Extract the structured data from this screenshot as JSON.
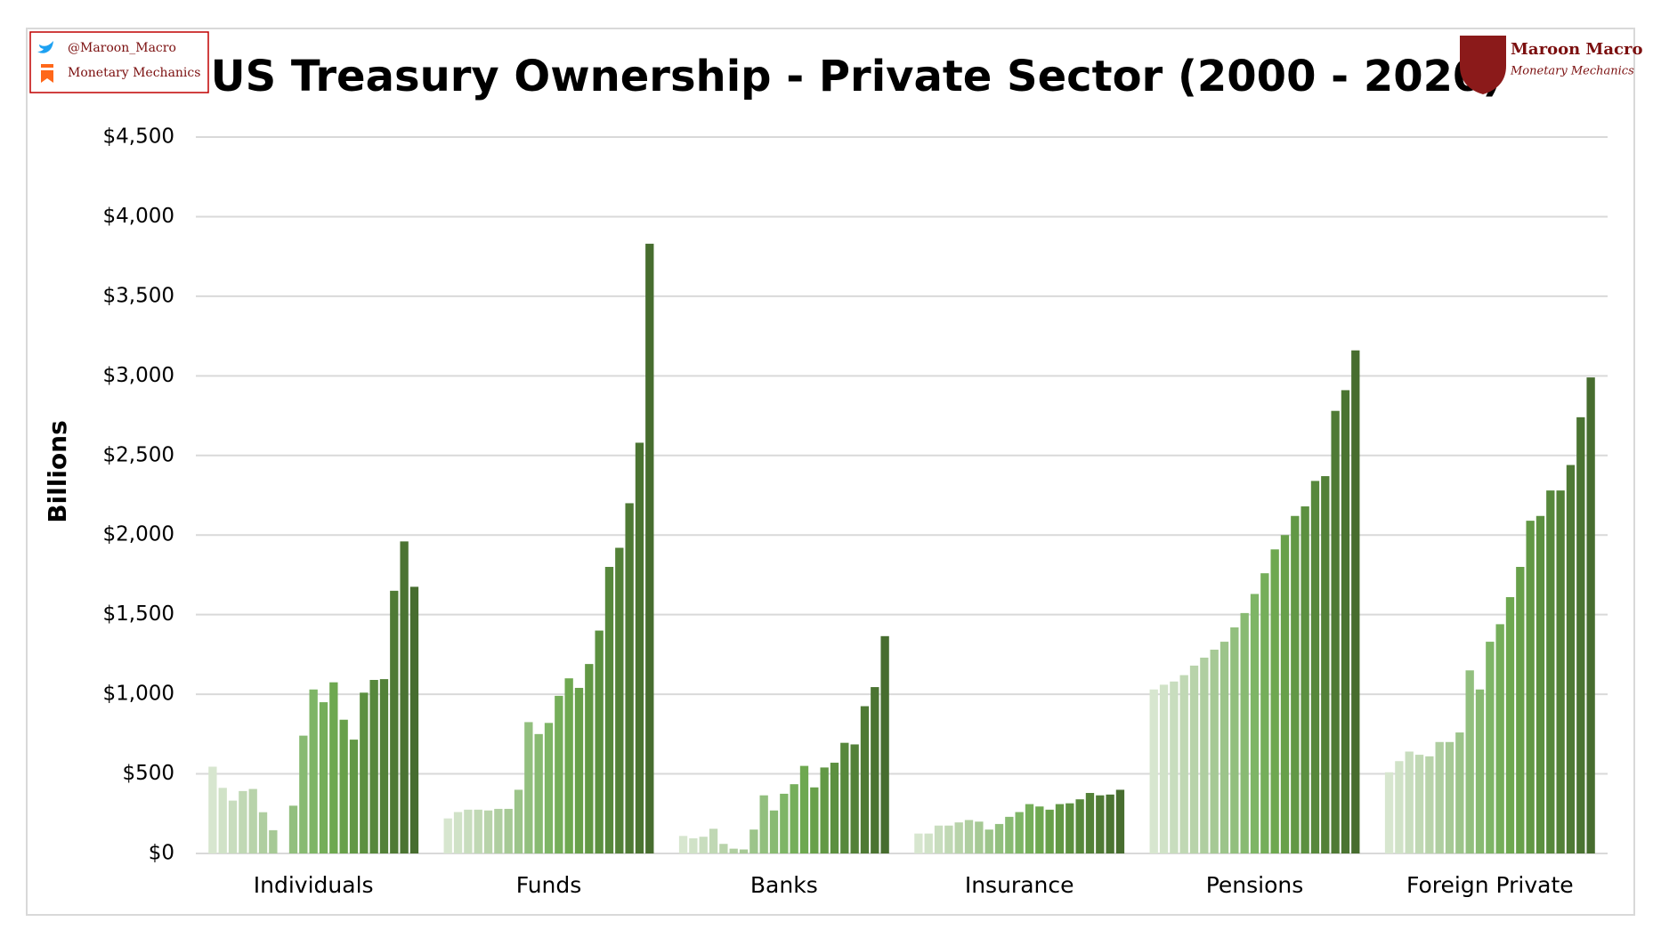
{
  "chart_data": {
    "type": "bar",
    "title": "US Treasury Ownership - Private Sector (2000 - 2020)",
    "y_label": "Billions",
    "branding": {
      "twitter": "@Maroon_Macro",
      "substack": "Monetary Mechanics",
      "logo_title": "Maroon Macro",
      "logo_subtitle": "Monetary Mechanics"
    },
    "categories": [
      "Individuals",
      "Funds",
      "Banks",
      "Insurance",
      "Pensions",
      "Foreign Private"
    ],
    "ylim": [
      0,
      4500
    ],
    "yticks": [
      {
        "value": 0,
        "label": "$0"
      },
      {
        "value": 500,
        "label": "$500"
      },
      {
        "value": 1000,
        "label": "$1,000"
      },
      {
        "value": 1500,
        "label": "$1,500"
      },
      {
        "value": 2000,
        "label": "$2,000"
      },
      {
        "value": 2500,
        "label": "$2,500"
      },
      {
        "value": 3000,
        "label": "$3,000"
      },
      {
        "value": 3500,
        "label": "$3,500"
      },
      {
        "value": 4000,
        "label": "$4,000"
      },
      {
        "value": 4500,
        "label": "$4,500"
      }
    ],
    "grid": true,
    "series": [
      {
        "color": "#d7e6cf",
        "values": [
          545,
          220,
          110,
          125,
          1030,
          510
        ]
      },
      {
        "color": "#d0e2c7",
        "values": [
          412,
          260,
          95,
          125,
          1060,
          580
        ]
      },
      {
        "color": "#c8ddbe",
        "values": [
          332,
          275,
          105,
          175,
          1080,
          640
        ]
      },
      {
        "color": "#c0d8b4",
        "values": [
          392,
          275,
          155,
          175,
          1120,
          620
        ]
      },
      {
        "color": "#b8d3aa",
        "values": [
          405,
          270,
          60,
          195,
          1180,
          610
        ]
      },
      {
        "color": "#afcea0",
        "values": [
          259,
          280,
          30,
          210,
          1230,
          700
        ]
      },
      {
        "color": "#a6c995",
        "values": [
          146,
          280,
          25,
          200,
          1280,
          700
        ]
      },
      {
        "color": "#9cc48a",
        "values": [
          0,
          400,
          150,
          150,
          1330,
          760
        ]
      },
      {
        "color": "#92bf7e",
        "values": [
          300,
          825,
          365,
          185,
          1420,
          1150
        ]
      },
      {
        "color": "#88ba72",
        "values": [
          740,
          750,
          270,
          230,
          1510,
          1030
        ]
      },
      {
        "color": "#7eb566",
        "values": [
          1030,
          820,
          375,
          260,
          1630,
          1330
        ]
      },
      {
        "color": "#75ae5a",
        "values": [
          950,
          990,
          435,
          310,
          1760,
          1440
        ]
      },
      {
        "color": "#6ea850",
        "values": [
          1075,
          1100,
          550,
          295,
          1910,
          1610
        ]
      },
      {
        "color": "#68a04a",
        "values": [
          840,
          1040,
          415,
          275,
          2000,
          1800
        ]
      },
      {
        "color": "#629845",
        "values": [
          715,
          1190,
          540,
          310,
          2120,
          2090
        ]
      },
      {
        "color": "#5c9040",
        "values": [
          1010,
          1400,
          570,
          315,
          2180,
          2120
        ]
      },
      {
        "color": "#57883c",
        "values": [
          1090,
          1800,
          695,
          340,
          2340,
          2280
        ]
      },
      {
        "color": "#538138",
        "values": [
          1095,
          1920,
          685,
          380,
          2370,
          2280
        ]
      },
      {
        "color": "#4f7a35",
        "values": [
          1650,
          2200,
          925,
          365,
          2780,
          2440
        ]
      },
      {
        "color": "#4b7432",
        "values": [
          1960,
          2580,
          1045,
          370,
          2910,
          2740
        ]
      },
      {
        "color": "#476d2f",
        "values": [
          1675,
          3830,
          1365,
          400,
          3160,
          2990
        ]
      }
    ]
  }
}
